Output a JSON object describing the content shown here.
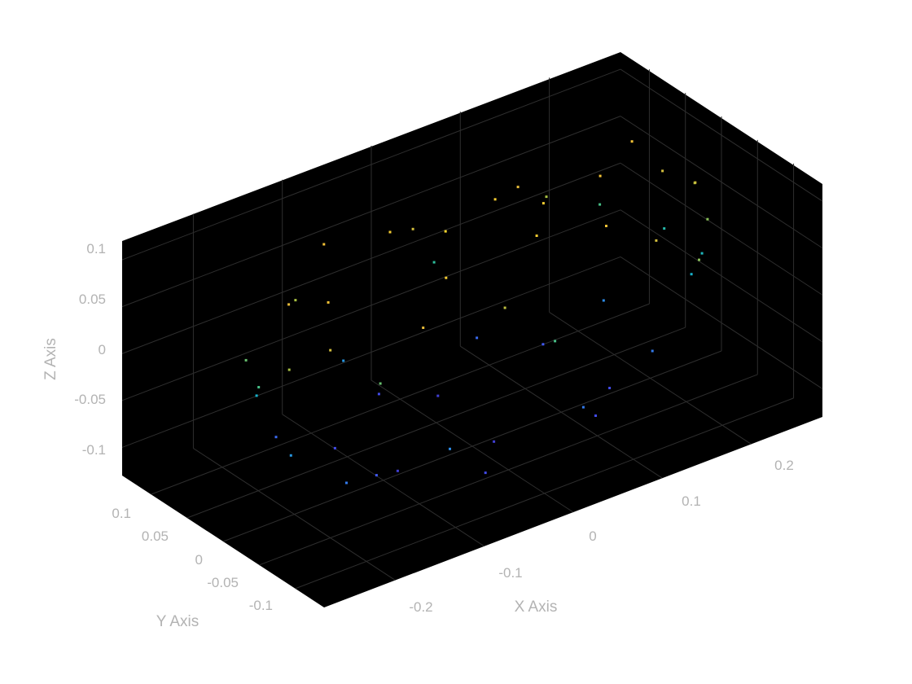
{
  "chart_data": {
    "type": "scatter",
    "title": "",
    "xlabel": "X Axis",
    "ylabel": "Y Axis",
    "zlabel": "Z Axis",
    "xlim": [
      -0.28,
      0.28
    ],
    "ylim": [
      -0.14,
      0.14
    ],
    "zlim": [
      -0.13,
      0.12
    ],
    "x_ticks": [
      -0.2,
      -0.1,
      0,
      0.1,
      0.2
    ],
    "x_tick_labels": [
      "-0.2",
      "-0.1",
      "0",
      "0.1",
      "0.2"
    ],
    "y_ticks": [
      -0.1,
      -0.05,
      0,
      0.05,
      0.1
    ],
    "y_tick_labels": [
      "-0.1",
      "-0.05",
      "0",
      "0.05",
      "0.1"
    ],
    "z_ticks": [
      -0.1,
      -0.05,
      0,
      0.05,
      0.1
    ],
    "z_tick_labels": [
      "-0.1",
      "-0.05",
      "0",
      "0.05",
      "0.1"
    ],
    "grid": true,
    "view": "3d-perspective",
    "background_color": "#000000",
    "grid_color": "#2e2e2e",
    "label_color": "#b3b3b3",
    "colormap": "parula (colored by z)",
    "colormap_stops": [
      "#3e26a8",
      "#4352f6",
      "#2c8de6",
      "#16b1cf",
      "#2fc098",
      "#a5c043",
      "#f2bc39",
      "#f9e027"
    ],
    "series": [
      {
        "points_xyz": [
          [
            -0.24,
            0.0,
            0.02
          ],
          [
            -0.23,
            0.03,
            0.05
          ],
          [
            -0.23,
            -0.03,
            0.03
          ],
          [
            -0.22,
            0.02,
            -0.05
          ],
          [
            -0.21,
            -0.04,
            -0.02
          ],
          [
            -0.2,
            0.05,
            0.07
          ],
          [
            -0.19,
            -0.02,
            0.08
          ],
          [
            -0.19,
            0.06,
            -0.07
          ],
          [
            -0.18,
            -0.05,
            -0.08
          ],
          [
            -0.17,
            0.01,
            0.09
          ],
          [
            -0.16,
            0.07,
            0.03
          ],
          [
            -0.15,
            -0.06,
            0.05
          ],
          [
            -0.14,
            0.04,
            -0.09
          ],
          [
            -0.13,
            -0.03,
            -0.1
          ],
          [
            -0.12,
            0.08,
            0.08
          ],
          [
            -0.11,
            -0.07,
            0.09
          ],
          [
            -0.1,
            0.02,
            -0.11
          ],
          [
            -0.09,
            0.08,
            -0.06
          ],
          [
            -0.08,
            -0.08,
            -0.05
          ],
          [
            -0.07,
            0.05,
            0.1
          ],
          [
            -0.06,
            -0.04,
            0.1
          ],
          [
            -0.05,
            0.08,
            -0.1
          ],
          [
            -0.04,
            -0.08,
            -0.1
          ],
          [
            -0.03,
            0.0,
            0.11
          ],
          [
            -0.02,
            0.07,
            0.06
          ],
          [
            -0.01,
            -0.07,
            0.07
          ],
          [
            0.0,
            0.03,
            -0.11
          ],
          [
            0.01,
            -0.06,
            -0.11
          ],
          [
            0.02,
            0.09,
            0.02
          ],
          [
            0.03,
            -0.09,
            0.01
          ],
          [
            0.04,
            0.04,
            0.1
          ],
          [
            0.05,
            -0.03,
            0.1
          ],
          [
            0.06,
            0.08,
            -0.07
          ],
          [
            0.07,
            -0.08,
            -0.08
          ],
          [
            0.08,
            0.0,
            0.1
          ],
          [
            0.09,
            0.06,
            -0.1
          ],
          [
            0.1,
            -0.06,
            0.08
          ],
          [
            0.11,
            0.05,
            0.09
          ],
          [
            0.12,
            -0.05,
            -0.09
          ],
          [
            0.13,
            0.03,
            -0.1
          ],
          [
            0.14,
            -0.07,
            0.05
          ],
          [
            0.15,
            0.07,
            0.07
          ],
          [
            0.16,
            -0.02,
            0.09
          ],
          [
            0.17,
            0.04,
            -0.07
          ],
          [
            0.18,
            -0.04,
            -0.06
          ],
          [
            0.19,
            0.08,
            0.04
          ],
          [
            0.2,
            -0.07,
            0.02
          ],
          [
            0.21,
            0.05,
            0.1
          ],
          [
            0.22,
            -0.05,
            0.09
          ],
          [
            0.23,
            0.02,
            -0.02
          ],
          [
            0.23,
            -0.02,
            0.07
          ],
          [
            0.24,
            0.03,
            0.04
          ],
          [
            0.24,
            -0.03,
            0.0
          ],
          [
            0.25,
            0.0,
            0.06
          ],
          [
            0.25,
            0.01,
            -0.01
          ]
        ]
      }
    ]
  }
}
